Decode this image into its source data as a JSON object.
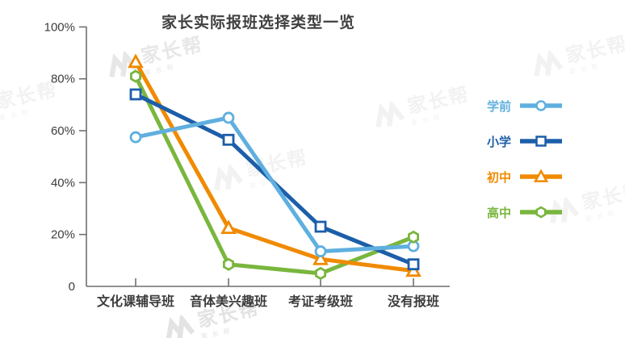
{
  "chart_data": {
    "type": "line",
    "title": "家长实际报班选择类型一览",
    "categories": [
      "文化课辅导班",
      "音体美兴趣班",
      "考证考级班",
      "没有报班"
    ],
    "series": [
      {
        "name": "学前",
        "marker": "circle",
        "color": "#5fafdf",
        "values": [
          57.5,
          65,
          13.5,
          15.5
        ]
      },
      {
        "name": "小学",
        "marker": "square",
        "color": "#1c5ea9",
        "values": [
          74,
          56.5,
          23,
          8.5
        ]
      },
      {
        "name": "初中",
        "marker": "triangle",
        "color": "#f08a00",
        "values": [
          86.5,
          22.5,
          10.5,
          6
        ]
      },
      {
        "name": "高中",
        "marker": "hexagon",
        "color": "#79b63e",
        "values": [
          81,
          8.5,
          5,
          19
        ]
      }
    ],
    "yticks": [
      {
        "label": "0",
        "value": 0
      },
      {
        "label": "20%",
        "value": 20
      },
      {
        "label": "40%",
        "value": 40
      },
      {
        "label": "60%",
        "value": 60
      },
      {
        "label": "80%",
        "value": 80
      },
      {
        "label": "100%",
        "value": 100
      }
    ],
    "ylim": [
      0,
      100
    ],
    "xlabel": "",
    "ylabel": "",
    "grid": false,
    "legend_position": "right",
    "axis_color": "#6f6f6f",
    "text_color": "#3d3d3d"
  },
  "watermark": {
    "text": "家长帮",
    "sub": "家长帮"
  }
}
